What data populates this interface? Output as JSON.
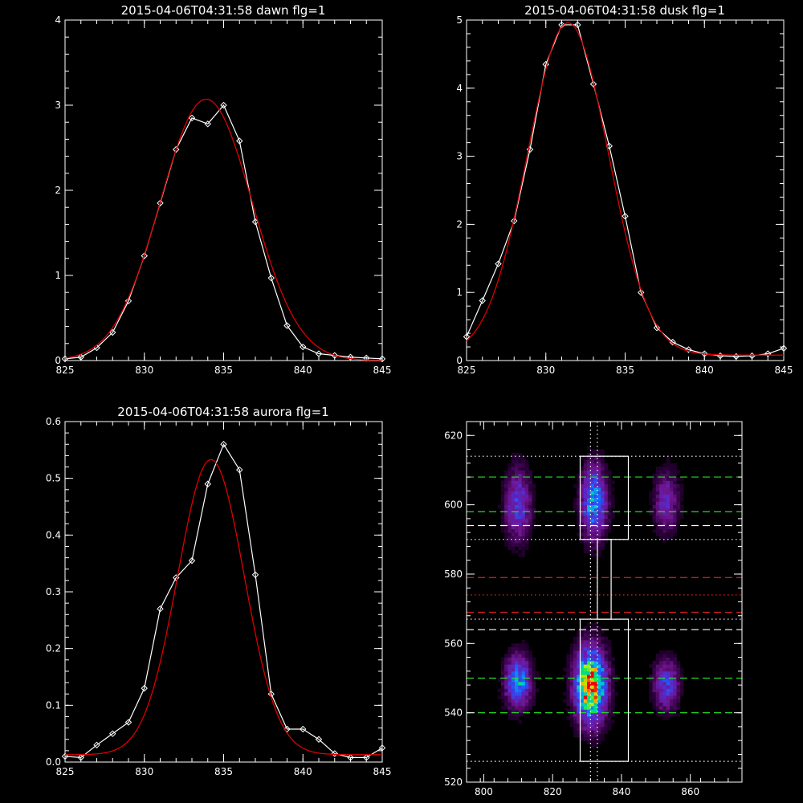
{
  "colors": {
    "background": "#000000",
    "axes": "#ffffff",
    "data_line": "#ffffff",
    "fit_line": "#dd0000"
  },
  "chart_data": [
    {
      "id": "dawn",
      "type": "line",
      "title": "2015-04-06T04:31:58 dawn flg=1",
      "xlim": [
        825,
        845
      ],
      "ylim": [
        0,
        4
      ],
      "xticks": [
        "825",
        "830",
        "835",
        "840",
        "845"
      ],
      "yticks": [
        "0",
        "1",
        "2",
        "3",
        "4"
      ],
      "xtick_values": [
        825,
        830,
        835,
        840,
        845
      ],
      "ytick_values": [
        0,
        1,
        2,
        3,
        4
      ],
      "series": [
        {
          "marker": "diamond",
          "color": "#ffffff",
          "x": [
            825,
            826,
            827,
            828,
            829,
            830,
            831,
            832,
            833,
            834,
            835,
            836,
            837,
            838,
            839,
            840,
            841,
            842,
            843,
            844,
            845
          ],
          "y": [
            0.02,
            0.04,
            0.15,
            0.33,
            0.7,
            1.23,
            1.85,
            2.48,
            2.85,
            2.78,
            3.0,
            2.58,
            1.63,
            0.97,
            0.41,
            0.16,
            0.08,
            0.06,
            0.04,
            0.03,
            0.02
          ]
        },
        {
          "marker": "none",
          "color": "#dd0000",
          "gaussian": {
            "amplitude": 3.07,
            "center": 833.9,
            "sigma": 2.9,
            "offset": 0.0
          }
        }
      ]
    },
    {
      "id": "dusk",
      "type": "line",
      "title": "2015-04-06T04:31:58 dusk flg=1",
      "xlim": [
        825,
        845
      ],
      "ylim": [
        0,
        5
      ],
      "xticks": [
        "825",
        "830",
        "835",
        "840",
        "845"
      ],
      "yticks": [
        "0",
        "1",
        "2",
        "3",
        "4",
        "5"
      ],
      "xtick_values": [
        825,
        830,
        835,
        840,
        845
      ],
      "ytick_values": [
        0,
        1,
        2,
        3,
        4,
        5
      ],
      "series": [
        {
          "marker": "diamond",
          "color": "#ffffff",
          "x": [
            825,
            826,
            827,
            828,
            829,
            830,
            831,
            832,
            833,
            834,
            835,
            836,
            837,
            838,
            839,
            840,
            841,
            842,
            843,
            844,
            845
          ],
          "y": [
            0.35,
            0.88,
            1.42,
            2.05,
            3.1,
            4.35,
            4.93,
            4.93,
            4.06,
            3.15,
            2.12,
            1.0,
            0.48,
            0.27,
            0.16,
            0.1,
            0.07,
            0.06,
            0.07,
            0.1,
            0.18
          ]
        },
        {
          "marker": "none",
          "color": "#dd0000",
          "gaussian": {
            "amplitude": 4.88,
            "center": 831.4,
            "sigma": 2.55,
            "offset": 0.08
          }
        }
      ]
    },
    {
      "id": "aurora",
      "type": "line",
      "title": "2015-04-06T04:31:58 aurora flg=1",
      "xlim": [
        825,
        845
      ],
      "ylim": [
        0,
        0.6
      ],
      "xticks": [
        "825",
        "830",
        "835",
        "840",
        "845"
      ],
      "yticks": [
        "0.0",
        "0.1",
        "0.2",
        "0.3",
        "0.4",
        "0.5",
        "0.6"
      ],
      "xtick_values": [
        825,
        830,
        835,
        840,
        845
      ],
      "ytick_values": [
        0,
        0.1,
        0.2,
        0.3,
        0.4,
        0.5,
        0.6
      ],
      "series": [
        {
          "marker": "diamond",
          "color": "#ffffff",
          "x": [
            825,
            826,
            827,
            828,
            829,
            830,
            831,
            832,
            833,
            834,
            835,
            836,
            837,
            838,
            839,
            840,
            841,
            842,
            843,
            844,
            845
          ],
          "y": [
            0.01,
            0.008,
            0.03,
            0.05,
            0.07,
            0.13,
            0.27,
            0.325,
            0.355,
            0.49,
            0.56,
            0.515,
            0.33,
            0.12,
            0.058,
            0.058,
            0.04,
            0.015,
            0.008,
            0.008,
            0.025
          ]
        },
        {
          "marker": "none",
          "color": "#dd0000",
          "gaussian": {
            "amplitude": 0.52,
            "center": 834.2,
            "sigma": 2.1,
            "offset": 0.013
          }
        }
      ]
    },
    {
      "id": "image",
      "type": "heatmap",
      "title": "",
      "xlim": [
        795,
        875
      ],
      "ylim": [
        520,
        624
      ],
      "xticks": [
        "800",
        "820",
        "840",
        "860"
      ],
      "yticks": [
        "520",
        "540",
        "560",
        "580",
        "600",
        "620"
      ],
      "xtick_values": [
        800,
        820,
        840,
        860
      ],
      "ytick_values": [
        520,
        540,
        560,
        580,
        600,
        620
      ],
      "sources": [
        {
          "x": 810,
          "y": 549,
          "peak": 0.55,
          "sx": 2.5,
          "sy": 5
        },
        {
          "x": 810,
          "y": 600,
          "peak": 0.38,
          "sx": 2.5,
          "sy": 7
        },
        {
          "x": 831,
          "y": 548,
          "peak": 1.0,
          "sx": 3,
          "sy": 7
        },
        {
          "x": 832,
          "y": 601,
          "peak": 0.55,
          "sx": 2.5,
          "sy": 7
        },
        {
          "x": 853,
          "y": 548,
          "peak": 0.38,
          "sx": 2.5,
          "sy": 5
        },
        {
          "x": 853,
          "y": 601,
          "peak": 0.28,
          "sx": 2.5,
          "sy": 6
        }
      ],
      "boxes": [
        {
          "x0": 828,
          "x1": 842,
          "y0": 526,
          "y1": 567
        },
        {
          "x0": 828,
          "x1": 842,
          "y0": 590,
          "y1": 614
        }
      ],
      "connector": {
        "x0": 833,
        "x1": 837,
        "y0": 567,
        "y1": 590
      },
      "vertical_lines": [
        {
          "x": 831,
          "color": "#ffffff",
          "style": "dotted"
        },
        {
          "x": 833,
          "color": "#ffffff",
          "style": "dotted"
        }
      ],
      "horizontal_lines": [
        {
          "y": 614,
          "color": "#ffffff",
          "style": "dotted"
        },
        {
          "y": 608,
          "color": "#22dd22",
          "style": "dashed"
        },
        {
          "y": 598,
          "color": "#22dd22",
          "style": "dashed"
        },
        {
          "y": 594,
          "color": "#ffffff",
          "style": "dashed"
        },
        {
          "y": 590,
          "color": "#ffffff",
          "style": "dotted"
        },
        {
          "y": 579,
          "color": "#dd2222",
          "style": "dashed"
        },
        {
          "y": 574,
          "color": "#dd2222",
          "style": "dotted"
        },
        {
          "y": 569,
          "color": "#dd2222",
          "style": "dashed"
        },
        {
          "y": 567,
          "color": "#ffffff",
          "style": "dotted"
        },
        {
          "y": 564,
          "color": "#ffffff",
          "style": "dashed"
        },
        {
          "y": 550,
          "color": "#22dd22",
          "style": "dashed"
        },
        {
          "y": 540,
          "color": "#22dd22",
          "style": "dashed"
        },
        {
          "y": 526,
          "color": "#ffffff",
          "style": "dotted"
        }
      ]
    }
  ]
}
